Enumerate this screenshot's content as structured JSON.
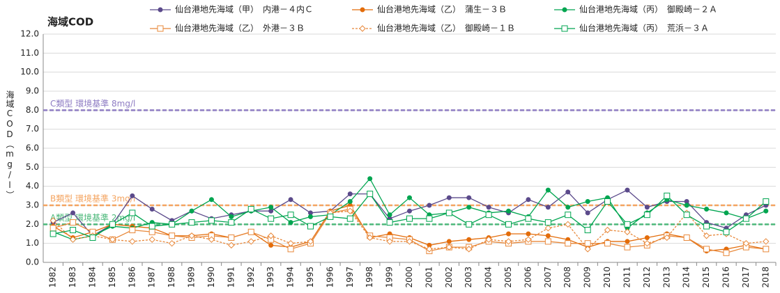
{
  "chart_data": {
    "type": "line",
    "title": "海域COD",
    "y_label": "海域COD（mg/l）",
    "categories": [
      "1982",
      "1983",
      "1984",
      "1985",
      "1986",
      "1987",
      "1988",
      "1989",
      "1990",
      "1991",
      "1992",
      "1993",
      "1994",
      "1995",
      "1996",
      "1997",
      "1998",
      "1999",
      "2000",
      "2001",
      "2002",
      "2003",
      "2004",
      "2005",
      "2006",
      "2007",
      "2008",
      "2009",
      "2010",
      "2011",
      "2012",
      "2013",
      "2014",
      "2015",
      "2016",
      "2017",
      "2018"
    ],
    "series": [
      {
        "name": "仙台港地先海域（甲）　内港－４内Ｃ",
        "color": "#5b4a8b",
        "marker": "circle",
        "filled": true,
        "dashed": false,
        "values": [
          2.1,
          2.6,
          1.4,
          2.0,
          3.5,
          2.8,
          2.2,
          2.7,
          2.3,
          2.5,
          2.7,
          2.7,
          3.3,
          2.6,
          2.7,
          3.6,
          3.6,
          2.3,
          2.7,
          3.0,
          3.4,
          3.4,
          2.9,
          2.6,
          3.3,
          2.9,
          3.7,
          2.6,
          3.3,
          3.8,
          2.9,
          3.2,
          3.2,
          2.1,
          1.8,
          2.5,
          3.0
        ]
      },
      {
        "name": "仙台港地先海域（乙）　蒲生－３Ｂ",
        "color": "#e36c0a",
        "marker": "circle",
        "filled": true,
        "dashed": false,
        "values": [
          1.9,
          1.3,
          1.6,
          2.0,
          1.9,
          1.8,
          1.4,
          1.4,
          1.5,
          1.3,
          1.6,
          0.9,
          0.8,
          1.1,
          2.7,
          3.0,
          1.3,
          1.5,
          1.3,
          0.9,
          1.1,
          1.2,
          1.3,
          1.5,
          1.5,
          1.4,
          1.2,
          0.8,
          1.1,
          1.1,
          1.3,
          1.5,
          1.3,
          0.6,
          0.7,
          0.9,
          0.7
        ]
      },
      {
        "name": "仙台港地先海域（丙）　御殿崎－２Ａ",
        "color": "#00a550",
        "marker": "circle",
        "filled": true,
        "dashed": false,
        "values": [
          1.6,
          1.2,
          1.4,
          1.9,
          1.8,
          2.1,
          2.0,
          2.7,
          3.3,
          2.4,
          2.7,
          2.9,
          2.1,
          2.4,
          2.5,
          3.2,
          4.4,
          2.5,
          3.4,
          2.5,
          2.6,
          2.9,
          2.6,
          2.7,
          2.4,
          3.8,
          2.9,
          3.2,
          3.4,
          1.8,
          2.6,
          3.3,
          3.0,
          2.8,
          2.6,
          2.3,
          2.7
        ]
      },
      {
        "name": "仙台港地先海域（乙）　外港－３Ｂ",
        "color": "#e8883a",
        "marker": "square",
        "filled": false,
        "dashed": false,
        "values": [
          1.8,
          2.1,
          1.6,
          1.2,
          1.7,
          1.6,
          1.4,
          1.3,
          1.4,
          1.3,
          1.6,
          1.2,
          0.7,
          1.0,
          2.6,
          2.8,
          1.4,
          1.3,
          1.2,
          0.6,
          0.8,
          0.8,
          1.1,
          1.0,
          1.1,
          1.1,
          1.0,
          1.0,
          1.0,
          0.8,
          0.9,
          1.4,
          1.3,
          0.7,
          0.5,
          0.8,
          0.7
        ]
      },
      {
        "name": "仙台港地先海域（乙）　御殿崎－１Ｂ",
        "color": "#e8883a",
        "marker": "diamond",
        "filled": false,
        "dashed": true,
        "values": [
          2.2,
          1.2,
          1.4,
          1.2,
          1.1,
          1.2,
          1.0,
          1.4,
          1.2,
          0.9,
          1.1,
          1.4,
          1.0,
          1.1,
          2.6,
          2.7,
          1.3,
          1.1,
          1.1,
          0.7,
          0.8,
          0.7,
          1.2,
          1.1,
          1.2,
          1.8,
          2.0,
          0.7,
          1.7,
          1.6,
          1.0,
          1.3,
          2.6,
          1.4,
          1.5,
          1.0,
          1.1
        ]
      },
      {
        "name": "仙台港地先海域（丙）　荒浜－３Ａ",
        "color": "#00a550",
        "marker": "square",
        "filled": false,
        "dashed": false,
        "values": [
          1.5,
          1.7,
          1.3,
          2.0,
          2.6,
          1.9,
          2.0,
          2.1,
          2.2,
          2.1,
          2.8,
          2.3,
          2.5,
          1.9,
          2.4,
          2.3,
          3.6,
          2.1,
          2.3,
          2.3,
          2.6,
          2.0,
          2.5,
          2.0,
          2.3,
          2.1,
          2.5,
          1.7,
          3.2,
          2.0,
          2.5,
          3.5,
          2.5,
          1.9,
          1.6,
          2.3,
          3.2
        ]
      }
    ],
    "reference_lines": [
      {
        "value": 8,
        "label": "C類型 環境基準 8mg/l",
        "color": "#8e7cc3"
      },
      {
        "value": 3,
        "label": "B類型 環境基準 3mg/l",
        "color": "#f4a460"
      },
      {
        "value": 2,
        "label": "A類型 環境基準 2mg/l",
        "color": "#4cb87a"
      }
    ],
    "ylim": [
      0,
      12
    ],
    "yticks": [
      {
        "value": 0,
        "label": "0.0"
      },
      {
        "value": 1,
        "label": "1.0"
      },
      {
        "value": 2,
        "label": "2.0"
      },
      {
        "value": 3,
        "label": "3.0"
      },
      {
        "value": 4,
        "label": "4.0"
      },
      {
        "value": 5,
        "label": "5.0"
      },
      {
        "value": 6,
        "label": "6.0"
      },
      {
        "value": 7,
        "label": "7.0"
      },
      {
        "value": 8,
        "label": "8.0"
      },
      {
        "value": 9,
        "label": "9.0"
      },
      {
        "value": 10,
        "label": "10.0"
      },
      {
        "value": 11,
        "label": "11.0"
      },
      {
        "value": 12,
        "label": "12.0"
      }
    ],
    "grid": true
  }
}
